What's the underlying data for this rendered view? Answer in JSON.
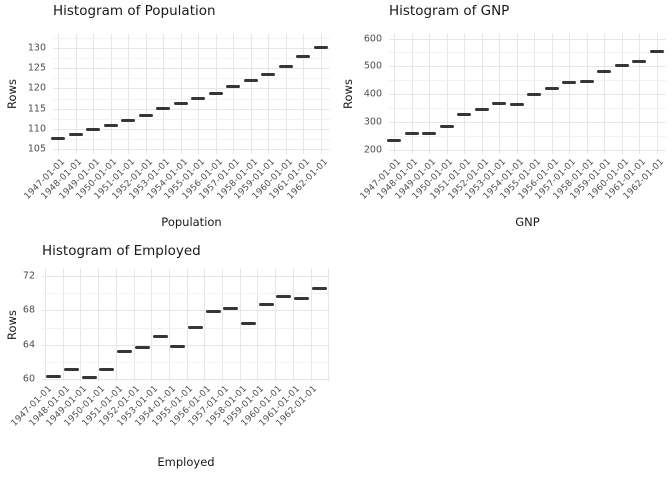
{
  "style": {
    "background": "#ffffff",
    "mark_color": "#363636",
    "grid_major_color": "#e6e6e6",
    "grid_minor_color": "#f2f2f2",
    "tick_label_color": "#4d4d4d",
    "title_color": "#1a1a1a"
  },
  "chart_data": [
    {
      "type": "scatter",
      "marker": "horizontal-dash",
      "title": "Histogram of Population",
      "xlabel": "Population",
      "ylabel": "Rows",
      "categories": [
        "1947-01-01",
        "1948-01-01",
        "1949-01-01",
        "1950-01-01",
        "1951-01-01",
        "1952-01-01",
        "1953-01-01",
        "1954-01-01",
        "1955-01-01",
        "1956-01-01",
        "1957-01-01",
        "1958-01-01",
        "1959-01-01",
        "1960-01-01",
        "1961-01-01",
        "1962-01-01"
      ],
      "values": [
        107.608,
        108.632,
        109.773,
        110.929,
        112.075,
        113.27,
        115.094,
        116.219,
        117.388,
        118.734,
        120.445,
        121.95,
        123.366,
        125.368,
        127.852,
        130.081
      ],
      "y_ticks": [
        105,
        110,
        115,
        120,
        125,
        130
      ],
      "ylim": [
        104,
        133.5
      ],
      "grid": true,
      "legend": "none"
    },
    {
      "type": "scatter",
      "marker": "horizontal-dash",
      "title": "Histogram of GNP",
      "xlabel": "GNP",
      "ylabel": "Rows",
      "categories": [
        "1947-01-01",
        "1948-01-01",
        "1949-01-01",
        "1950-01-01",
        "1951-01-01",
        "1952-01-01",
        "1953-01-01",
        "1954-01-01",
        "1955-01-01",
        "1956-01-01",
        "1957-01-01",
        "1958-01-01",
        "1959-01-01",
        "1960-01-01",
        "1961-01-01",
        "1962-01-01"
      ],
      "values": [
        234.289,
        259.426,
        258.054,
        284.599,
        328.975,
        346.999,
        365.385,
        363.112,
        397.469,
        419.18,
        442.769,
        444.546,
        482.704,
        502.601,
        518.173,
        554.894
      ],
      "y_ticks": [
        200,
        300,
        400,
        500,
        600
      ],
      "ylim": [
        185,
        616
      ],
      "grid": true,
      "legend": "none"
    },
    {
      "type": "scatter",
      "marker": "horizontal-dash",
      "title": "Histogram of Employed",
      "xlabel": "Employed",
      "ylabel": "Rows",
      "categories": [
        "1947-01-01",
        "1948-01-01",
        "1949-01-01",
        "1950-01-01",
        "1951-01-01",
        "1952-01-01",
        "1953-01-01",
        "1954-01-01",
        "1955-01-01",
        "1956-01-01",
        "1957-01-01",
        "1958-01-01",
        "1959-01-01",
        "1960-01-01",
        "1961-01-01",
        "1962-01-01"
      ],
      "values": [
        60.323,
        61.122,
        60.171,
        61.187,
        63.221,
        63.639,
        64.989,
        63.761,
        66.019,
        67.857,
        68.169,
        66.513,
        68.655,
        69.564,
        69.331,
        70.551
      ],
      "y_ticks": [
        60,
        64,
        68,
        72
      ],
      "ylim": [
        59.7,
        73.2
      ],
      "grid": true,
      "legend": "none"
    }
  ]
}
